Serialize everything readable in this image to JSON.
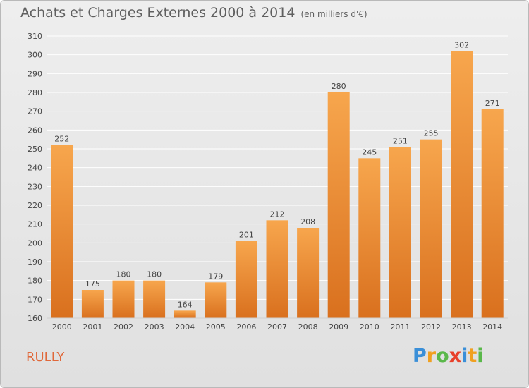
{
  "header": {
    "title": "Achats et Charges Externes 2000 à 2014",
    "subtitle": "(en milliers d'€)"
  },
  "footer": {
    "city": "RULLY",
    "logo_text": "Proxiti",
    "logo_letters": [
      {
        "char": "P",
        "color": "#3a8fd8"
      },
      {
        "char": "r",
        "color": "#f0a020"
      },
      {
        "char": "o",
        "color": "#5ab84a"
      },
      {
        "char": "x",
        "color": "#e8402a"
      },
      {
        "char": "i",
        "color": "#3a8fd8"
      },
      {
        "char": "t",
        "color": "#f0a020"
      },
      {
        "char": "i",
        "color": "#5ab84a"
      }
    ]
  },
  "colors": {
    "bar_light": "#f7a64d",
    "bar_dark": "#d9701e",
    "grid": "#ffffff",
    "axis_text": "#444444"
  },
  "chart_data": {
    "type": "bar",
    "title": "Achats et Charges Externes 2000 à 2014",
    "subtitle": "(en milliers d'€)",
    "categories": [
      "2000",
      "2001",
      "2002",
      "2003",
      "2004",
      "2005",
      "2006",
      "2007",
      "2008",
      "2009",
      "2010",
      "2011",
      "2012",
      "2013",
      "2014"
    ],
    "values": [
      252,
      175,
      180,
      180,
      164,
      179,
      201,
      212,
      208,
      280,
      245,
      251,
      255,
      302,
      271
    ],
    "ylim": [
      160,
      310
    ],
    "yticks": [
      160,
      170,
      180,
      190,
      200,
      210,
      220,
      230,
      240,
      250,
      260,
      270,
      280,
      290,
      300,
      310
    ],
    "grid": true,
    "data_labels": true
  }
}
